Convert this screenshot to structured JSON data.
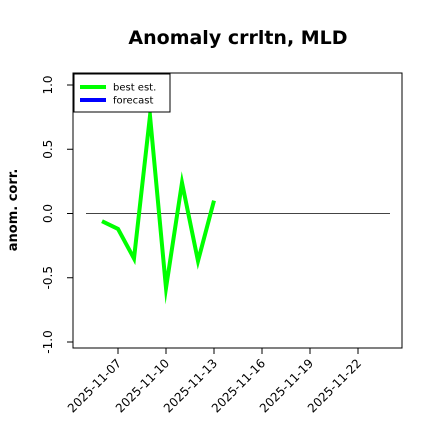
{
  "chart_data": {
    "type": "line",
    "title": "Anomaly crrltn, MLD",
    "xlabel": "",
    "ylabel": "anom. corr.",
    "ylim": [
      -1.0,
      1.0
    ],
    "yticks": [
      -1.0,
      -0.5,
      0.0,
      0.5,
      1.0
    ],
    "ytick_labels": [
      "-1.0",
      "-0.5",
      "0.0",
      "0.5",
      "1.0"
    ],
    "xlim": [
      "2025-11-05",
      "2025-11-24"
    ],
    "xtick_labels": [
      "2025-11-07",
      "2025-11-10",
      "2025-11-13",
      "2025-11-16",
      "2025-11-19",
      "2025-11-22"
    ],
    "highlighted_xtick": "2025-11-13",
    "highlight_color": "#228B22",
    "reference_line": 0.0,
    "grid": false,
    "legend_position": "top-left",
    "series": [
      {
        "name": "best est.",
        "color": "#00ff00",
        "x": [
          "2025-11-06",
          "2025-11-07",
          "2025-11-08",
          "2025-11-09",
          "2025-11-10",
          "2025-11-11",
          "2025-11-12",
          "2025-11-13"
        ],
        "y": [
          -0.06,
          -0.12,
          -0.35,
          0.76,
          -0.58,
          0.24,
          -0.37,
          0.1
        ]
      },
      {
        "name": "forecast",
        "color": "#0000ff",
        "x": [],
        "y": []
      }
    ]
  }
}
